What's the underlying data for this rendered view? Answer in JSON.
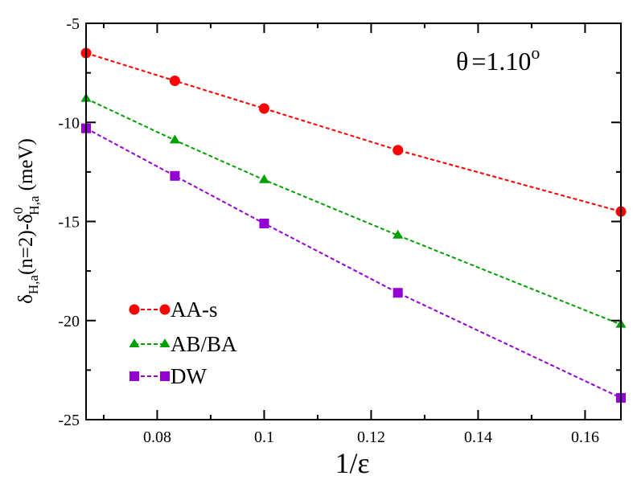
{
  "chart_data": {
    "type": "line",
    "title": "",
    "annotation": {
      "symbol": "θ",
      "text": "=1.10",
      "superscript": "o"
    },
    "xlabel": "1/ε",
    "ylabel": {
      "main": "δ",
      "sub1": "H,a",
      "mid": "(n=2)-δ",
      "sup2": "0",
      "sub2": "H,a",
      "unit": " (meV)"
    },
    "xlim": [
      0.0667,
      0.1667
    ],
    "ylim": [
      -25,
      -5
    ],
    "xticks": [
      0.08,
      0.1,
      0.12,
      0.14,
      0.16
    ],
    "xtick_labels": [
      "0.08",
      "0.1",
      "0.12",
      "0.14",
      "0.16"
    ],
    "yticks": [
      -25,
      -20,
      -15,
      -10,
      -5
    ],
    "ytick_labels": [
      "-25",
      "-20",
      "-15",
      "-10",
      "-5"
    ],
    "legend_position": "bottom-left",
    "x": [
      0.0667,
      0.0833,
      0.1,
      0.125,
      0.1667
    ],
    "series": [
      {
        "name": "AA-s",
        "marker": "circle",
        "color": "#ff0000",
        "values": [
          -6.5,
          -7.9,
          -9.3,
          -11.4,
          -14.5
        ]
      },
      {
        "name": "AB/BA",
        "marker": "triangle",
        "color": "#00a000",
        "values": [
          -8.8,
          -10.9,
          -12.9,
          -15.7,
          -20.2
        ]
      },
      {
        "name": "DW",
        "marker": "square",
        "color": "#9400d3",
        "values": [
          -10.3,
          -12.7,
          -15.1,
          -18.6,
          -23.9
        ]
      }
    ]
  }
}
